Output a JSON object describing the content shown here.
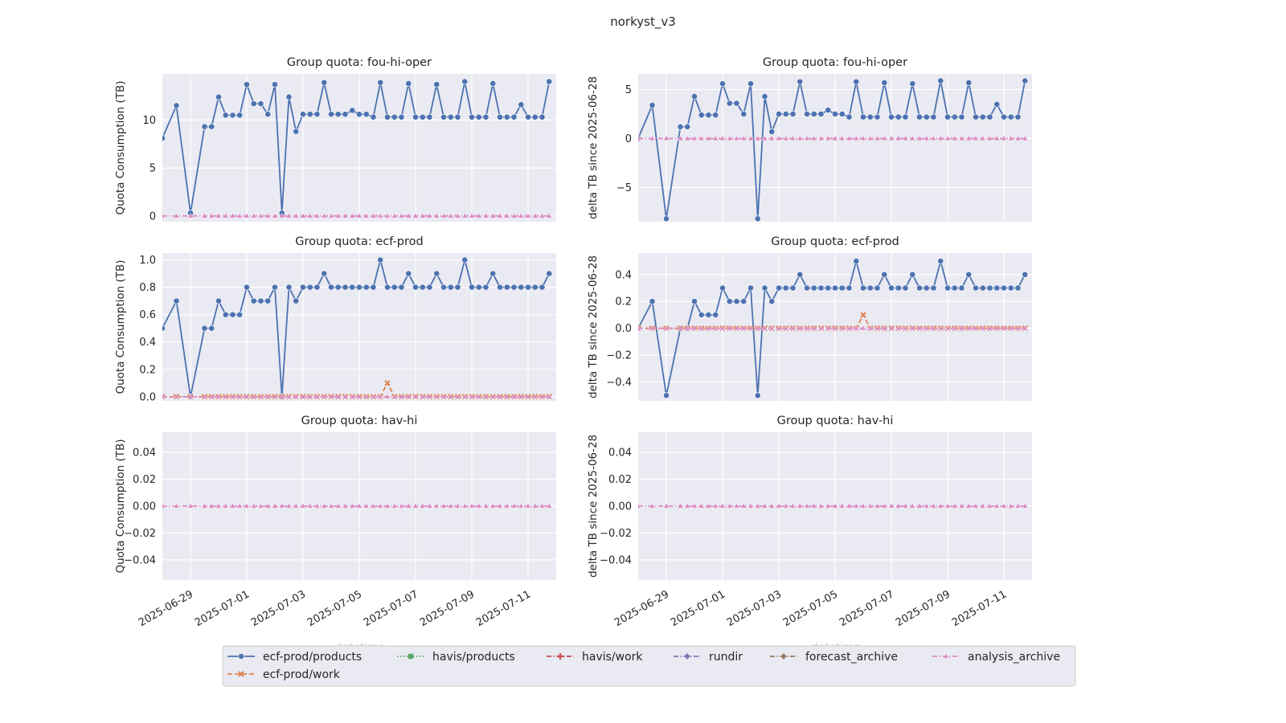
{
  "figure": {
    "title": "norkyst_v3",
    "xlabel": "datetime",
    "dates": [
      "2025-06-28T00:00",
      "2025-06-28T12:00",
      "2025-06-29T00:00",
      "2025-06-29T12:00",
      "2025-06-29T18:00",
      "2025-06-30T00:00",
      "2025-06-30T06:00",
      "2025-06-30T12:00",
      "2025-06-30T18:00",
      "2025-07-01T00:00",
      "2025-07-01T06:00",
      "2025-07-01T12:00",
      "2025-07-01T18:00",
      "2025-07-02T00:00",
      "2025-07-02T06:00",
      "2025-07-02T12:00",
      "2025-07-02T18:00",
      "2025-07-03T00:00",
      "2025-07-03T06:00",
      "2025-07-03T12:00",
      "2025-07-03T18:00",
      "2025-07-04T00:00",
      "2025-07-04T06:00",
      "2025-07-04T12:00",
      "2025-07-04T18:00",
      "2025-07-05T00:00",
      "2025-07-05T06:00",
      "2025-07-05T12:00",
      "2025-07-05T18:00",
      "2025-07-06T00:00",
      "2025-07-06T06:00",
      "2025-07-06T12:00",
      "2025-07-06T18:00",
      "2025-07-07T00:00",
      "2025-07-07T06:00",
      "2025-07-07T12:00",
      "2025-07-07T18:00",
      "2025-07-08T00:00",
      "2025-07-08T06:00",
      "2025-07-08T12:00",
      "2025-07-08T18:00",
      "2025-07-09T00:00",
      "2025-07-09T06:00",
      "2025-07-09T12:00",
      "2025-07-09T18:00",
      "2025-07-10T00:00",
      "2025-07-10T06:00",
      "2025-07-10T12:00",
      "2025-07-10T18:00",
      "2025-07-11T00:00",
      "2025-07-11T06:00",
      "2025-07-11T12:00",
      "2025-07-11T18:00"
    ],
    "legend": {
      "placement": "bottom-center",
      "entries": [
        {
          "label": "ecf-prod/products",
          "color": "#4c72b0",
          "marker": "circle",
          "dash": "solid"
        },
        {
          "label": "ecf-prod/work",
          "color": "#dd8452",
          "marker": "x",
          "dash": "dashed"
        },
        {
          "label": "havis/products",
          "color": "#55a868",
          "marker": "square",
          "dash": "dotted"
        },
        {
          "label": "havis/work",
          "color": "#c44e52",
          "marker": "plus",
          "dash": "dashdot"
        },
        {
          "label": "rundir",
          "color": "#8172b3",
          "marker": "diamond",
          "dash": "dashdotted"
        },
        {
          "label": "forecast_archive",
          "color": "#937860",
          "marker": "diamond",
          "dash": "dashdotted"
        },
        {
          "label": "analysis_archive",
          "color": "#da8bc3",
          "marker": "triangle",
          "dash": "dashdotted"
        }
      ]
    }
  },
  "chart_data": [
    {
      "type": "line",
      "title": "Group quota: fou-hi-oper",
      "ylabel": "Quota Consumption (TB)",
      "ylim": [
        -0.6,
        14.8
      ],
      "yticks": [
        0,
        5,
        10
      ],
      "xticks": [
        "2025-06-29",
        "2025-07-01",
        "2025-07-03",
        "2025-07-05",
        "2025-07-07",
        "2025-07-09",
        "2025-07-11"
      ],
      "grid": true,
      "series": [
        {
          "name": "ecf-prod/products",
          "values": [
            8.1,
            11.5,
            0.3,
            9.3,
            9.3,
            12.4,
            10.5,
            10.5,
            10.5,
            13.7,
            11.7,
            11.7,
            10.6,
            13.7,
            0.3,
            12.4,
            8.8,
            10.6,
            10.6,
            10.6,
            13.9,
            10.6,
            10.6,
            10.6,
            11.0,
            10.6,
            10.6,
            10.3,
            13.9,
            10.3,
            10.3,
            10.3,
            13.8,
            10.3,
            10.3,
            10.3,
            13.7,
            10.3,
            10.3,
            10.3,
            14.0,
            10.3,
            10.3,
            10.3,
            13.8,
            10.3,
            10.3,
            10.3,
            11.6,
            10.3,
            10.3,
            10.3,
            14.0
          ]
        },
        {
          "name": "analysis_archive",
          "values": "0 for all dates"
        }
      ]
    },
    {
      "type": "line",
      "title": "Group quota: fou-hi-oper",
      "ylabel": "delta TB since 2025-06-28",
      "ylim": [
        -8.5,
        6.6
      ],
      "yticks": [
        -5,
        0,
        5
      ],
      "xticks": [
        "2025-06-29",
        "2025-07-01",
        "2025-07-03",
        "2025-07-05",
        "2025-07-07",
        "2025-07-09",
        "2025-07-11"
      ],
      "grid": true,
      "series": [
        {
          "name": "ecf-prod/products",
          "values": [
            0.0,
            3.4,
            -8.2,
            1.2,
            1.2,
            4.3,
            2.4,
            2.4,
            2.4,
            5.6,
            3.6,
            3.6,
            2.5,
            5.6,
            -8.2,
            4.3,
            0.7,
            2.5,
            2.5,
            2.5,
            5.8,
            2.5,
            2.5,
            2.5,
            2.9,
            2.5,
            2.5,
            2.2,
            5.8,
            2.2,
            2.2,
            2.2,
            5.7,
            2.2,
            2.2,
            2.2,
            5.6,
            2.2,
            2.2,
            2.2,
            5.9,
            2.2,
            2.2,
            2.2,
            5.7,
            2.2,
            2.2,
            2.2,
            3.5,
            2.2,
            2.2,
            2.2,
            5.9
          ]
        },
        {
          "name": "analysis_archive",
          "values": "0 for all dates"
        }
      ]
    },
    {
      "type": "line",
      "title": "Group quota: ecf-prod",
      "ylabel": "Quota Consumption (TB)",
      "ylim": [
        -0.03,
        1.05
      ],
      "yticks": [
        0.0,
        0.2,
        0.4,
        0.6,
        0.8,
        1.0
      ],
      "xticks": [
        "2025-06-29",
        "2025-07-01",
        "2025-07-03",
        "2025-07-05",
        "2025-07-07",
        "2025-07-09",
        "2025-07-11"
      ],
      "grid": true,
      "series": [
        {
          "name": "ecf-prod/products",
          "values": [
            0.5,
            0.7,
            0.0,
            0.5,
            0.5,
            0.7,
            0.6,
            0.6,
            0.6,
            0.8,
            0.7,
            0.7,
            0.7,
            0.8,
            0.0,
            0.8,
            0.7,
            0.8,
            0.8,
            0.8,
            0.9,
            0.8,
            0.8,
            0.8,
            0.8,
            0.8,
            0.8,
            0.8,
            1.0,
            0.8,
            0.8,
            0.8,
            0.9,
            0.8,
            0.8,
            0.8,
            0.9,
            0.8,
            0.8,
            0.8,
            1.0,
            0.8,
            0.8,
            0.8,
            0.9,
            0.8,
            0.8,
            0.8,
            0.8,
            0.8,
            0.8,
            0.8,
            0.9
          ]
        },
        {
          "name": "ecf-prod/work",
          "values": "0 except 0.1 on 2025-07-06"
        },
        {
          "name": "analysis_archive",
          "values": "0 for all dates"
        }
      ]
    },
    {
      "type": "line",
      "title": "Group quota: ecf-prod",
      "ylabel": "delta TB since 2025-06-28",
      "ylim": [
        -0.54,
        0.56
      ],
      "yticks": [
        -0.4,
        -0.2,
        0.0,
        0.2,
        0.4
      ],
      "xticks": [
        "2025-06-29",
        "2025-07-01",
        "2025-07-03",
        "2025-07-05",
        "2025-07-07",
        "2025-07-09",
        "2025-07-11"
      ],
      "grid": true,
      "series": [
        {
          "name": "ecf-prod/products",
          "values": [
            0.0,
            0.2,
            -0.5,
            0.0,
            0.0,
            0.2,
            0.1,
            0.1,
            0.1,
            0.3,
            0.2,
            0.2,
            0.2,
            0.3,
            -0.5,
            0.3,
            0.2,
            0.3,
            0.3,
            0.3,
            0.4,
            0.3,
            0.3,
            0.3,
            0.3,
            0.3,
            0.3,
            0.3,
            0.5,
            0.3,
            0.3,
            0.3,
            0.4,
            0.3,
            0.3,
            0.3,
            0.4,
            0.3,
            0.3,
            0.3,
            0.5,
            0.3,
            0.3,
            0.3,
            0.4,
            0.3,
            0.3,
            0.3,
            0.3,
            0.3,
            0.3,
            0.3,
            0.4
          ]
        },
        {
          "name": "ecf-prod/work",
          "values": "0 except 0.1 on 2025-07-06"
        },
        {
          "name": "analysis_archive",
          "values": "0 for all dates"
        }
      ]
    },
    {
      "type": "line",
      "title": "Group quota: hav-hi",
      "ylabel": "Quota Consumption (TB)",
      "ylim": [
        -0.055,
        0.055
      ],
      "yticks": [
        -0.04,
        -0.02,
        0.0,
        0.02,
        0.04
      ],
      "xticks": [
        "2025-06-29",
        "2025-07-01",
        "2025-07-03",
        "2025-07-05",
        "2025-07-07",
        "2025-07-09",
        "2025-07-11"
      ],
      "grid": true,
      "series": [
        {
          "name": "analysis_archive",
          "values": "0 for all dates"
        }
      ]
    },
    {
      "type": "line",
      "title": "Group quota: hav-hi",
      "ylabel": "delta TB since 2025-06-28",
      "ylim": [
        -0.055,
        0.055
      ],
      "yticks": [
        -0.04,
        -0.02,
        0.0,
        0.02,
        0.04
      ],
      "xticks": [
        "2025-06-29",
        "2025-07-01",
        "2025-07-03",
        "2025-07-05",
        "2025-07-07",
        "2025-07-09",
        "2025-07-11"
      ],
      "grid": true,
      "series": [
        {
          "name": "analysis_archive",
          "values": "0 for all dates"
        }
      ]
    }
  ]
}
